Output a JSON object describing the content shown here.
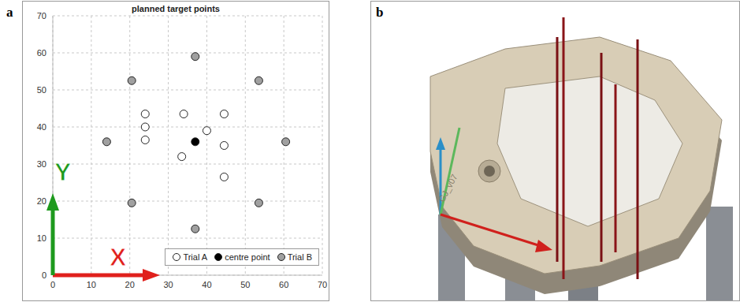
{
  "chart_data": {
    "type": "scatter",
    "panel_label": "a",
    "title": "planned target points",
    "xlim": [
      0,
      70
    ],
    "xticks": [
      0,
      10,
      20,
      30,
      40,
      50,
      60,
      70
    ],
    "ylim": [
      0,
      70
    ],
    "yticks": [
      0,
      10,
      20,
      30,
      40,
      50,
      60,
      70
    ],
    "grid": true,
    "legend": "lower right",
    "axis_markers": [
      {
        "label": "X",
        "color": "#e0201c"
      },
      {
        "label": "Y",
        "color": "#1e9a1e"
      }
    ],
    "series": [
      {
        "name": "Trial A",
        "color": "#ffffff",
        "marker": "circle",
        "x": [
          24,
          24,
          24,
          34,
          40,
          33.5,
          44.5,
          44.5,
          44.5
        ],
        "values": [
          43.5,
          40,
          36.5,
          43.5,
          39,
          32,
          43.5,
          35,
          26.5
        ]
      },
      {
        "name": "centre point",
        "color": "#000000",
        "marker": "circle",
        "x": [
          37
        ],
        "values": [
          36
        ]
      },
      {
        "name": "Trial B",
        "color": "#a0a0a0",
        "marker": "circle",
        "x": [
          14,
          20.5,
          37,
          53.5,
          60.5,
          53.5,
          37,
          20.5
        ],
        "values": [
          36,
          52.5,
          59,
          52.5,
          36,
          19.5,
          12.5,
          19.5
        ]
      }
    ]
  },
  "render": {
    "panel_label": "b",
    "engraving": "GJ_v07"
  }
}
